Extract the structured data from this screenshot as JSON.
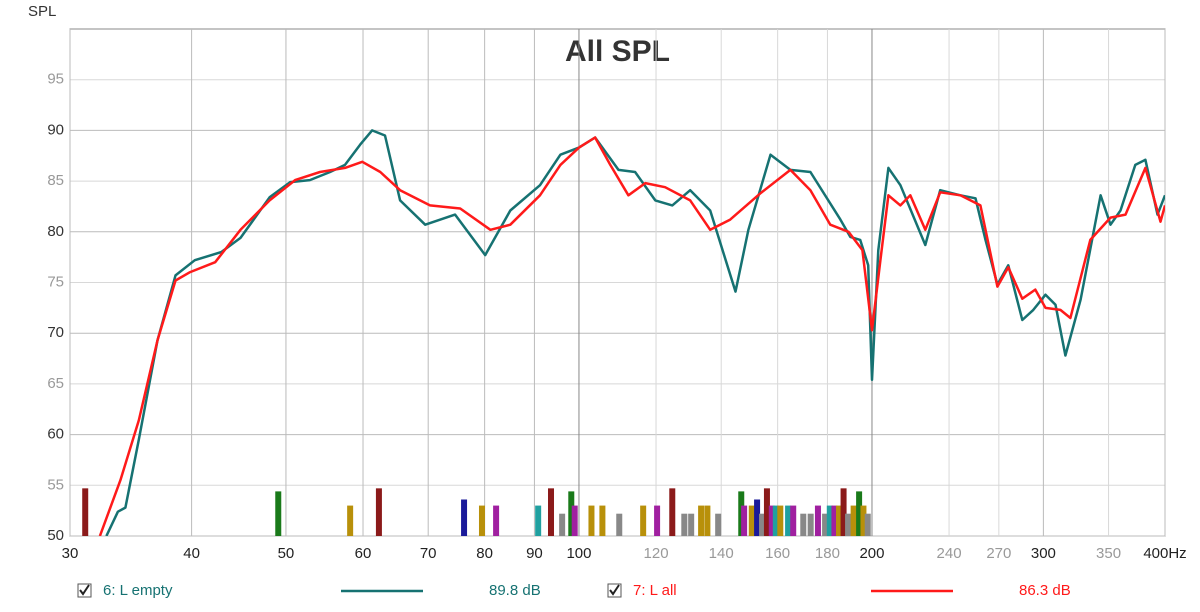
{
  "chart_data": {
    "type": "line",
    "title": "All SPL",
    "ylabel": "SPL",
    "xscale": "log",
    "xlim": [
      30,
      400
    ],
    "ylim": [
      50,
      100
    ],
    "xticks": [
      30,
      40,
      50,
      60,
      70,
      80,
      90,
      100,
      120,
      140,
      160,
      180,
      200,
      240,
      270,
      300,
      350,
      {
        "value": 400,
        "label": "400Hz"
      }
    ],
    "yticks": [
      50,
      55,
      60,
      65,
      70,
      75,
      80,
      85,
      90,
      95
    ],
    "grid": true,
    "series": [
      {
        "name": "6: L empty",
        "color": "#167272",
        "level": {
          "value": 89.8,
          "label": "89.8 dB"
        },
        "x": [
          32.7,
          33.6,
          34.2,
          35.3,
          36.9,
          38.5,
          40.3,
          42.9,
          44.9,
          48.1,
          50.5,
          52.9,
          55.5,
          57.5,
          59.6,
          61.3,
          63.2,
          65.5,
          69.5,
          74.6,
          80.1,
          85,
          91.2,
          95.7,
          100,
          103.9,
          109.8,
          114.2,
          119.8,
          124.7,
          130.1,
          136.4,
          144.8,
          149.3,
          157.3,
          164.9,
          172.9,
          185.6,
          190,
          194.5,
          198.2,
          200,
          203,
          207.9,
          213.9,
          226.9,
          235,
          246.5,
          255.5,
          261.6,
          269.1,
          276.1,
          285.4,
          292.9,
          301.5,
          308.7,
          316,
          327.6,
          343.5,
          351.6,
          360,
          372.9,
          381.9,
          393,
          400
        ],
        "values": [
          50,
          52.4,
          52.8,
          59.5,
          69.3,
          75.7,
          77.2,
          78,
          79.4,
          83.4,
          84.9,
          85.1,
          85.9,
          86.6,
          88.6,
          90,
          89.5,
          83.1,
          80.7,
          81.7,
          77.7,
          82.1,
          84.6,
          87.6,
          88.3,
          89.3,
          86.1,
          85.9,
          83.1,
          82.6,
          84.1,
          82.1,
          74.1,
          80.2,
          87.6,
          86.1,
          85.9,
          81.2,
          79.5,
          79.2,
          76.7,
          65.4,
          78.2,
          86.3,
          84.6,
          78.7,
          84.1,
          83.6,
          83.3,
          79.2,
          74.8,
          76.7,
          71.3,
          72.3,
          73.8,
          72.8,
          67.8,
          73.3,
          83.6,
          80.7,
          82.1,
          86.6,
          87.1,
          81.7,
          83.6
        ]
      },
      {
        "name": "7: L all",
        "color": "#ff1a1a",
        "level": {
          "value": 86.3,
          "label": "86.3 dB"
        },
        "x": [
          32.2,
          33.8,
          35.3,
          36.9,
          38.5,
          39.8,
          42.3,
          44.9,
          48.1,
          51.1,
          54.2,
          57.5,
          59.9,
          62.5,
          65.5,
          70.3,
          75.5,
          81.1,
          85,
          91.2,
          95.7,
          100,
          103.9,
          107.7,
          112.4,
          117,
          122.6,
          130.1,
          136.4,
          143,
          153.6,
          164.9,
          172.9,
          181.2,
          189.2,
          195.5,
          200,
          204,
          207.9,
          213.9,
          219,
          226.9,
          235,
          246.5,
          258.5,
          269.1,
          276.1,
          285.4,
          294.3,
          301.5,
          312.3,
          319.8,
          335.2,
          351.6,
          364.3,
          381.9,
          395.8,
          400
        ],
        "values": [
          50,
          55.5,
          61.4,
          69.3,
          75.2,
          76,
          77,
          80.2,
          83.1,
          85.1,
          85.9,
          86.3,
          86.9,
          85.9,
          84.1,
          82.6,
          82.3,
          80.2,
          80.7,
          83.6,
          86.6,
          88.3,
          89.3,
          86.6,
          83.6,
          84.8,
          84.4,
          83.1,
          80.2,
          81.2,
          83.8,
          86.1,
          84.1,
          80.7,
          80,
          78.2,
          70.3,
          77.2,
          83.6,
          82.6,
          83.6,
          80.2,
          83.9,
          83.6,
          82.6,
          74.6,
          76.5,
          73.4,
          74.3,
          72.5,
          72.3,
          71.5,
          79.2,
          81.4,
          81.7,
          86.3,
          81,
          82.6
        ]
      }
    ],
    "markers": [
      {
        "x": 31.1,
        "value": 54.7,
        "color": "#8b1a1a"
      },
      {
        "x": 49.1,
        "value": 54.4,
        "color": "#1a7a1a"
      },
      {
        "x": 58.2,
        "value": 53,
        "color": "#b8900a"
      },
      {
        "x": 62.3,
        "value": 54.7,
        "color": "#8b1a1a"
      },
      {
        "x": 76.2,
        "value": 53.6,
        "color": "#1a1a9a"
      },
      {
        "x": 79.5,
        "value": 53,
        "color": "#b8900a"
      },
      {
        "x": 82.2,
        "value": 53,
        "color": "#a020a0"
      },
      {
        "x": 90.8,
        "value": 53,
        "color": "#20a0a0"
      },
      {
        "x": 93.6,
        "value": 54.7,
        "color": "#8b1a1a"
      },
      {
        "x": 96.1,
        "value": 52.2,
        "color": "#888888"
      },
      {
        "x": 98.2,
        "value": 54.4,
        "color": "#1a7a1a"
      },
      {
        "x": 99,
        "value": 53,
        "color": "#a020a0"
      },
      {
        "x": 103,
        "value": 53,
        "color": "#b8900a"
      },
      {
        "x": 105.7,
        "value": 53,
        "color": "#b8900a"
      },
      {
        "x": 110,
        "value": 52.2,
        "color": "#888888"
      },
      {
        "x": 116.4,
        "value": 53,
        "color": "#b8900a"
      },
      {
        "x": 120.3,
        "value": 53,
        "color": "#a020a0"
      },
      {
        "x": 124.7,
        "value": 54.7,
        "color": "#8b1a1a"
      },
      {
        "x": 128.3,
        "value": 52.2,
        "color": "#888888"
      },
      {
        "x": 130.4,
        "value": 52.2,
        "color": "#888888"
      },
      {
        "x": 133.5,
        "value": 53,
        "color": "#b8900a"
      },
      {
        "x": 135.5,
        "value": 53,
        "color": "#b8900a"
      },
      {
        "x": 139,
        "value": 52.2,
        "color": "#888888"
      },
      {
        "x": 146.8,
        "value": 54.4,
        "color": "#1a7a1a"
      },
      {
        "x": 147.8,
        "value": 53,
        "color": "#a020a0"
      },
      {
        "x": 150.5,
        "value": 53,
        "color": "#b8900a"
      },
      {
        "x": 152.4,
        "value": 53.6,
        "color": "#1a1a9a"
      },
      {
        "x": 154.2,
        "value": 52.2,
        "color": "#888888"
      },
      {
        "x": 156,
        "value": 54.7,
        "color": "#8b1a1a"
      },
      {
        "x": 157.8,
        "value": 53,
        "color": "#a020a0"
      },
      {
        "x": 159.3,
        "value": 53,
        "color": "#20a0a0"
      },
      {
        "x": 161,
        "value": 53,
        "color": "#b8900a"
      },
      {
        "x": 164,
        "value": 53,
        "color": "#20a0a0"
      },
      {
        "x": 166,
        "value": 53,
        "color": "#a020a0"
      },
      {
        "x": 170,
        "value": 52.2,
        "color": "#888888"
      },
      {
        "x": 173,
        "value": 52.2,
        "color": "#888888"
      },
      {
        "x": 176,
        "value": 53,
        "color": "#a020a0"
      },
      {
        "x": 179,
        "value": 52.2,
        "color": "#888888"
      },
      {
        "x": 181,
        "value": 53,
        "color": "#20a0a0"
      },
      {
        "x": 183,
        "value": 53,
        "color": "#a020a0"
      },
      {
        "x": 185,
        "value": 53,
        "color": "#b8900a"
      },
      {
        "x": 187,
        "value": 54.7,
        "color": "#8b1a1a"
      },
      {
        "x": 189,
        "value": 52.2,
        "color": "#888888"
      },
      {
        "x": 191.5,
        "value": 53,
        "color": "#b8900a"
      },
      {
        "x": 194,
        "value": 54.4,
        "color": "#1a7a1a"
      },
      {
        "x": 196,
        "value": 53,
        "color": "#b8900a"
      },
      {
        "x": 198,
        "value": 52.2,
        "color": "#888888"
      }
    ]
  }
}
